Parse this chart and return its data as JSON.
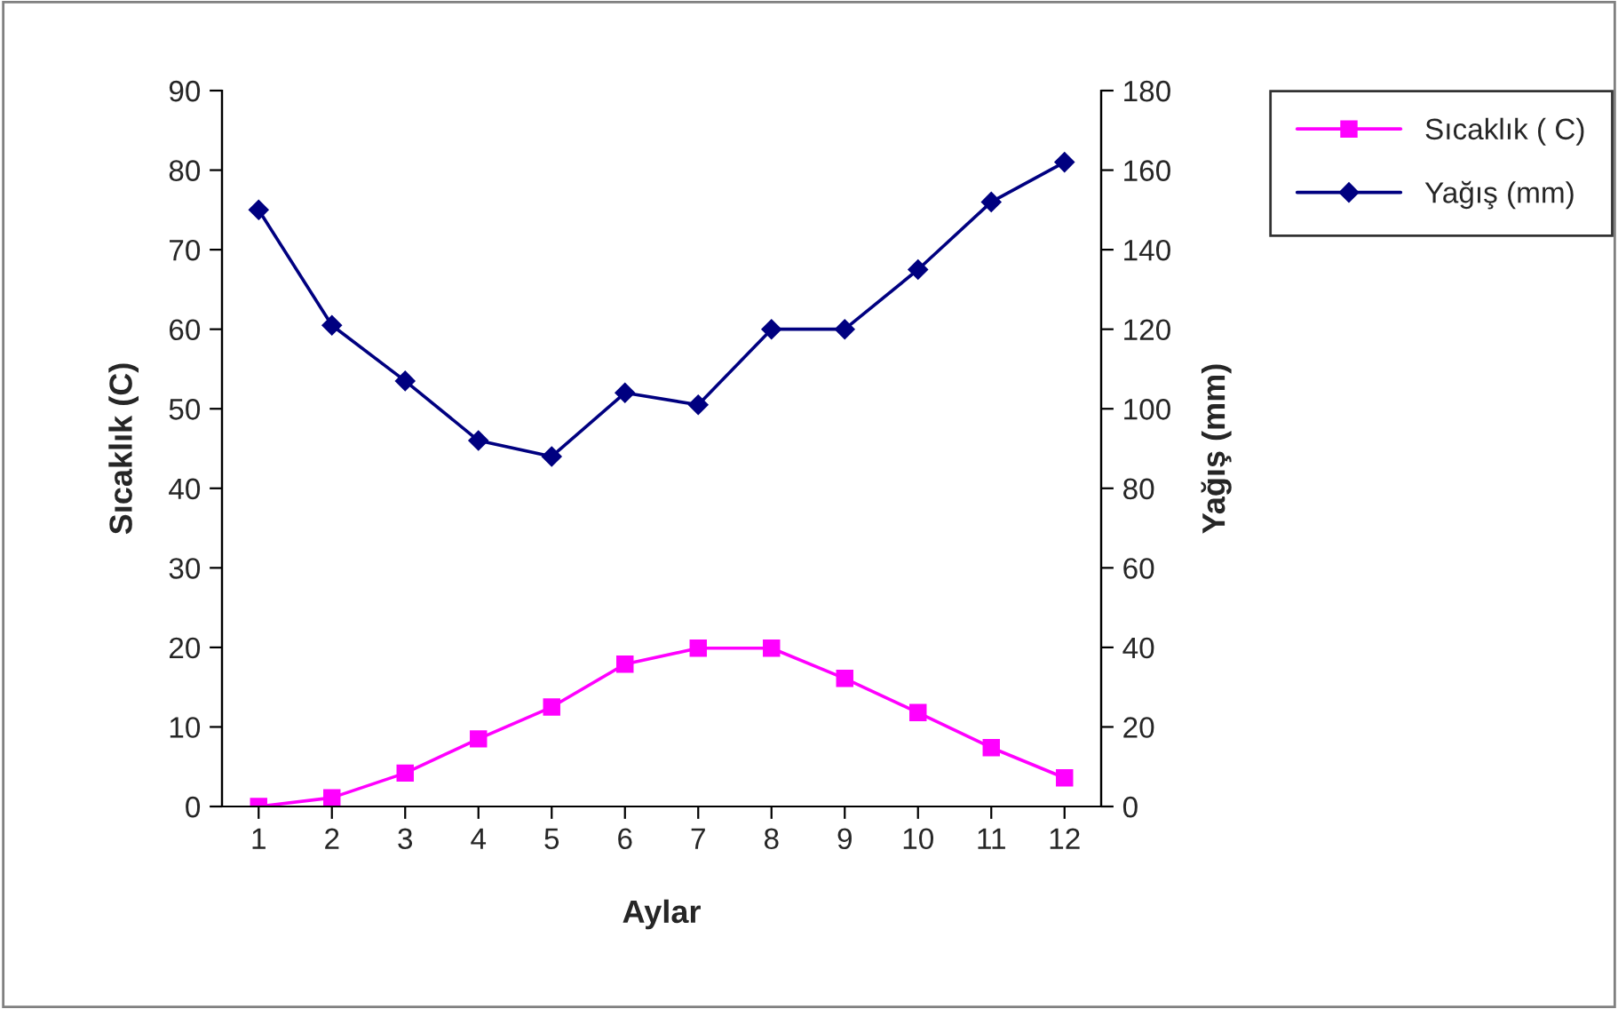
{
  "chart_data": {
    "type": "line",
    "xlabel": "Aylar",
    "ylabel": "Sıcaklık (C)",
    "y2label": "Yağış (mm)",
    "categories": [
      "1",
      "2",
      "3",
      "4",
      "5",
      "6",
      "7",
      "8",
      "9",
      "10",
      "11",
      "12"
    ],
    "series": [
      {
        "name": "Sıcaklık ( C)",
        "color": "#ff00ff",
        "marker": "square",
        "values": [
          0,
          1.1,
          4.2,
          8.5,
          12.5,
          17.9,
          19.9,
          19.9,
          16.1,
          11.8,
          7.4,
          3.6
        ]
      },
      {
        "name": "Yağış (mm)",
        "color": "#000080",
        "marker": "diamond",
        "axis": "y2",
        "values": [
          150,
          121,
          107,
          92,
          88,
          104,
          101,
          120,
          120,
          135,
          152,
          162
        ]
      }
    ],
    "ylim": [
      0,
      90
    ],
    "yticks": [
      0,
      10,
      20,
      30,
      40,
      50,
      60,
      70,
      80,
      90
    ],
    "y2lim": [
      0,
      180
    ],
    "y2ticks": [
      0,
      20,
      40,
      60,
      80,
      100,
      120,
      140,
      160,
      180
    ],
    "grid": false,
    "legend": "top right",
    "line_style": "solid"
  }
}
